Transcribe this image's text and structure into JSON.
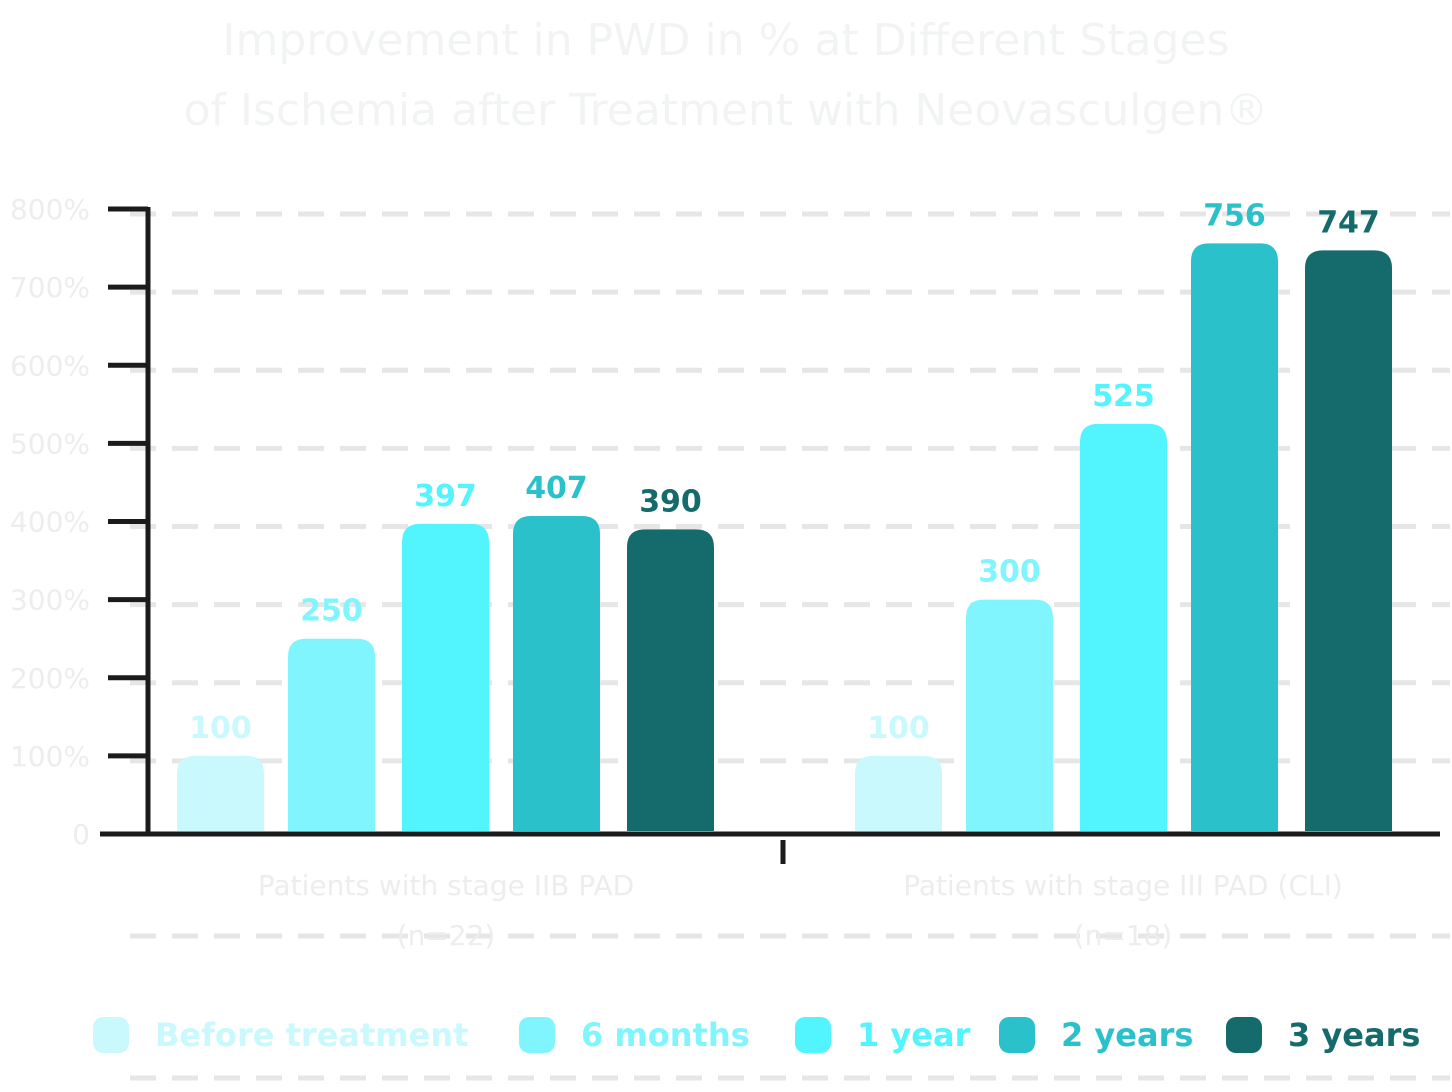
{
  "chart_data": {
    "type": "bar",
    "title": [
      "Improvement in PWD in % at Different Stages",
      "of Ischemia after Treatment with Neovasculgen®"
    ],
    "y_ticks": [
      "0",
      "100%",
      "200%",
      "300%",
      "400%",
      "500%",
      "600%",
      "700%",
      "800%"
    ],
    "ylim": [
      0,
      800
    ],
    "grid": true,
    "legend_position": "bottom",
    "categories": [
      [
        "Patients with stage IIB PAD",
        "(n=22)"
      ],
      [
        "Patients with stage III PAD (CLI)",
        "(n=18)"
      ]
    ],
    "series": [
      {
        "name": "Before treatment",
        "color": "#c9f9fc",
        "values": [
          100,
          100
        ]
      },
      {
        "name": "6 months",
        "color": "#80f5fd",
        "values": [
          250,
          300
        ]
      },
      {
        "name": "1 year",
        "color": "#52f4fd",
        "values": [
          397,
          525
        ]
      },
      {
        "name": "2 years",
        "color": "#2bc1cb",
        "values": [
          407,
          756
        ]
      },
      {
        "name": "3 years",
        "color": "#156a6b",
        "values": [
          390,
          747
        ]
      }
    ]
  }
}
